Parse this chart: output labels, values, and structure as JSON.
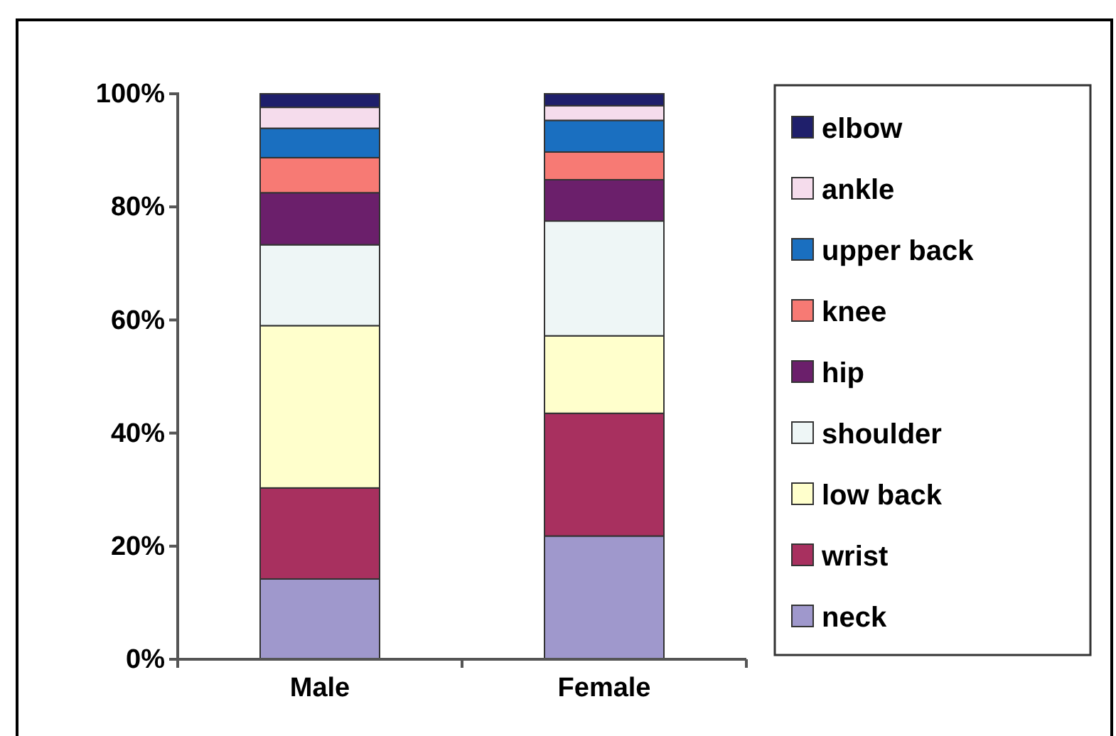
{
  "chart_data": {
    "type": "bar",
    "stacked": true,
    "categories": [
      "Male",
      "Female"
    ],
    "series": [
      {
        "name": "neck",
        "color": "#9f98cc",
        "values": [
          14.2,
          21.8
        ]
      },
      {
        "name": "wrist",
        "color": "#a8305f",
        "values": [
          16.1,
          21.7
        ]
      },
      {
        "name": "low back",
        "color": "#ffffcc",
        "values": [
          28.7,
          13.7
        ]
      },
      {
        "name": "shoulder",
        "color": "#eef6f6",
        "values": [
          14.3,
          20.3
        ]
      },
      {
        "name": "hip",
        "color": "#6b1f6b",
        "values": [
          9.2,
          7.3
        ]
      },
      {
        "name": "knee",
        "color": "#f77a74",
        "values": [
          6.2,
          4.9
        ]
      },
      {
        "name": "upper back",
        "color": "#1a6fc0",
        "values": [
          5.2,
          5.6
        ]
      },
      {
        "name": "ankle",
        "color": "#f5dcec",
        "values": [
          3.7,
          2.6
        ]
      },
      {
        "name": "elbow",
        "color": "#1f1f6b",
        "values": [
          2.4,
          2.1
        ]
      }
    ],
    "ylim": [
      0,
      100
    ],
    "yticks": [
      {
        "value": 0,
        "label": "0%"
      },
      {
        "value": 20,
        "label": "20%"
      },
      {
        "value": 40,
        "label": "40%"
      },
      {
        "value": 60,
        "label": "60%"
      },
      {
        "value": 80,
        "label": "80%"
      },
      {
        "value": 100,
        "label": "100%"
      }
    ],
    "grid": false,
    "legend": "right"
  }
}
